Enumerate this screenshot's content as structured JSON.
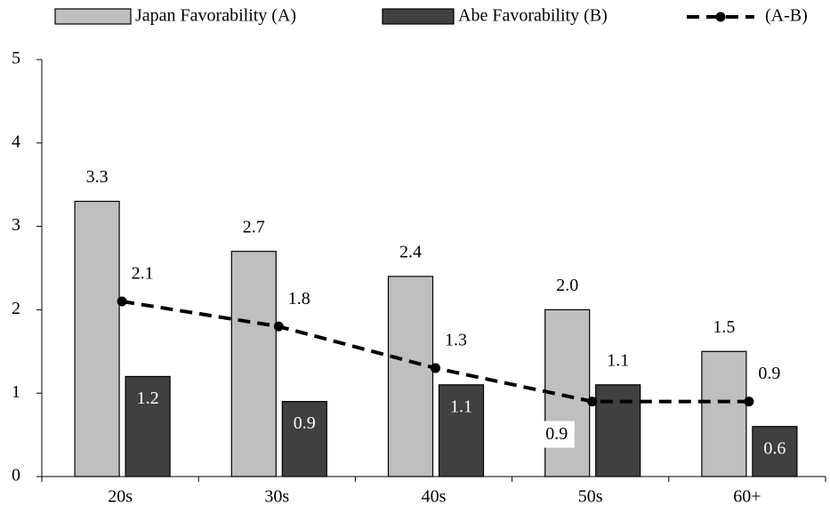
{
  "chart_data": {
    "type": "bar-line",
    "categories": [
      "20s",
      "30s",
      "40s",
      "50s",
      "60+"
    ],
    "series": [
      {
        "name": "Japan Favorability (A)",
        "type": "bar",
        "color": "#bfbfbf",
        "values": [
          3.3,
          2.7,
          2.4,
          2.0,
          1.5
        ],
        "value_labels": [
          "3.3",
          "2.7",
          "2.4",
          "2.0",
          "1.5"
        ]
      },
      {
        "name": "Abe Favorability (B)",
        "type": "bar",
        "color": "#404040",
        "values": [
          1.2,
          0.9,
          1.1,
          1.1,
          0.6
        ]
      },
      {
        "name": "(A-B)",
        "type": "line",
        "color": "#000000",
        "values": [
          2.1,
          1.8,
          1.3,
          0.9,
          0.9
        ]
      }
    ],
    "ylim": [
      0,
      5
    ],
    "yticks": [
      0,
      1,
      2,
      3,
      4,
      5
    ],
    "grid": false,
    "legend": "top"
  }
}
